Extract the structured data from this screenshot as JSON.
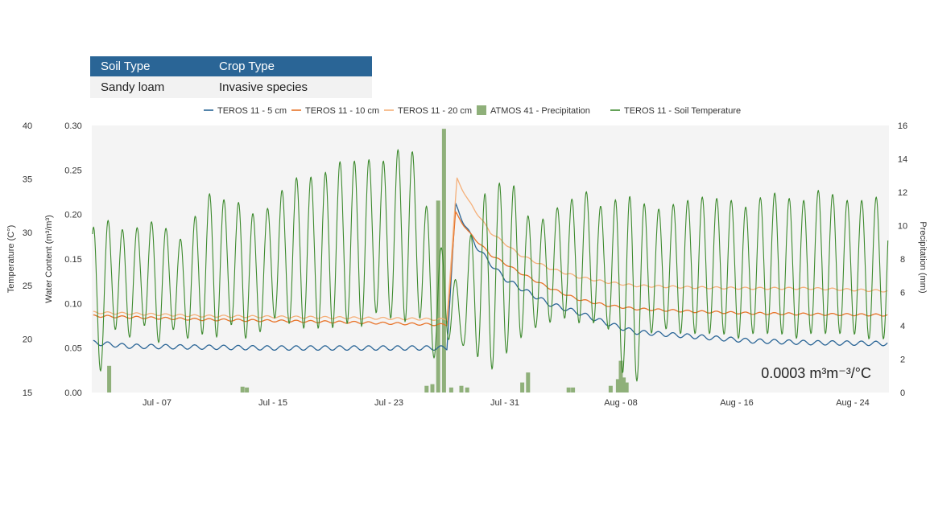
{
  "info_table": {
    "headers": [
      "Soil Type",
      "Crop Type"
    ],
    "values": [
      "Sandy loam",
      "Invasive species"
    ]
  },
  "chart_data": {
    "type": "line",
    "title": "",
    "annotation": "0.0003 m³m⁻³/°C",
    "x_ticks": [
      "Jul - 07",
      "Jul - 15",
      "Jul - 23",
      "Jul - 31",
      "Aug - 08",
      "Aug - 16",
      "Aug - 24"
    ],
    "x_tick_days": [
      7,
      15,
      23,
      31,
      39,
      47,
      55
    ],
    "x_range_days": [
      2.5,
      57.5
    ],
    "axes": {
      "temperature": {
        "label": "Temperature (C°)",
        "range": [
          15,
          40
        ],
        "ticks": [
          "15",
          "20",
          "25",
          "30",
          "35",
          "40"
        ]
      },
      "water_content": {
        "label": "Water Content (m³/m³)",
        "range": [
          0,
          0.3
        ],
        "ticks": [
          "0.00",
          "0.05",
          "0.10",
          "0.15",
          "0.20",
          "0.25",
          "0.30"
        ]
      },
      "precipitation": {
        "label": "Precipitation (mm)",
        "range": [
          0,
          16
        ],
        "ticks": [
          "0",
          "2",
          "4",
          "6",
          "8",
          "10",
          "12",
          "14",
          "16"
        ]
      }
    },
    "legend": [
      {
        "name": "TEROS 11 - 5 cm",
        "color": "#2a6596",
        "kind": "line"
      },
      {
        "name": "TEROS 11 - 10 cm",
        "color": "#e8742a",
        "kind": "line"
      },
      {
        "name": "TEROS 11 - 20 cm",
        "color": "#f5b07a",
        "kind": "line"
      },
      {
        "name": "ATMOS 41 - Precipitation",
        "color": "#8fb07a",
        "kind": "bar"
      },
      {
        "name": "TEROS 11 - Soil Temperature",
        "color": "#3d8a2e",
        "kind": "line"
      }
    ],
    "series": [
      {
        "name": "TEROS 11 - 5 cm",
        "axis": "water_content",
        "color": "#2a6596",
        "x": [
          2.6,
          5,
          10,
          15,
          20,
          24,
          27.0,
          27.6,
          28.2,
          29,
          30,
          31,
          32,
          34,
          36,
          38,
          40,
          44,
          48,
          52,
          57.4
        ],
        "y": [
          0.056,
          0.052,
          0.051,
          0.05,
          0.05,
          0.05,
          0.05,
          0.21,
          0.19,
          0.165,
          0.145,
          0.128,
          0.118,
          0.1,
          0.09,
          0.078,
          0.068,
          0.063,
          0.058,
          0.056,
          0.055
        ]
      },
      {
        "name": "TEROS 11 - 10 cm",
        "axis": "water_content",
        "color": "#e8742a",
        "x": [
          2.6,
          10,
          20,
          27.0,
          27.6,
          28.5,
          30,
          32,
          34,
          36,
          38,
          40,
          44,
          48,
          52,
          57.4
        ],
        "y": [
          0.086,
          0.082,
          0.079,
          0.076,
          0.202,
          0.18,
          0.155,
          0.135,
          0.118,
          0.105,
          0.098,
          0.094,
          0.091,
          0.089,
          0.088,
          0.087
        ]
      },
      {
        "name": "TEROS 11 - 20 cm",
        "axis": "water_content",
        "color": "#f5b07a",
        "x": [
          2.6,
          10,
          20,
          27.0,
          27.7,
          28.5,
          30,
          32,
          34,
          36,
          38,
          40,
          44,
          48,
          52,
          57.4
        ],
        "y": [
          0.09,
          0.086,
          0.084,
          0.082,
          0.24,
          0.215,
          0.18,
          0.155,
          0.14,
          0.13,
          0.124,
          0.12,
          0.118,
          0.117,
          0.117,
          0.114
        ]
      },
      {
        "name": "TEROS 11 - Soil Temperature",
        "axis": "temperature",
        "color": "#3d8a2e",
        "days": [
          3,
          4,
          5,
          6,
          7,
          8,
          9,
          10,
          11,
          12,
          13,
          14,
          15,
          16,
          17,
          18,
          19,
          20,
          21,
          22,
          23,
          24,
          25,
          26,
          27,
          28,
          29,
          30,
          31,
          32,
          33,
          34,
          35,
          36,
          37,
          38,
          39,
          40,
          41,
          42,
          43,
          44,
          45,
          46,
          47,
          48,
          49,
          50,
          51,
          52,
          53,
          54,
          55,
          56,
          57
        ],
        "max": [
          30.5,
          31.5,
          29.5,
          31.0,
          31.0,
          30.0,
          29.0,
          33.0,
          34.0,
          32.5,
          33.0,
          31.0,
          33.0,
          34.5,
          35.5,
          35.0,
          36.0,
          37.0,
          36.5,
          37.0,
          36.5,
          38.5,
          37.0,
          29.5,
          28.0,
          24.0,
          33.0,
          34.0,
          35.0,
          34.0,
          30.0,
          32.0,
          32.5,
          33.5,
          34.0,
          31.5,
          34.0,
          33.0,
          32.5,
          32.0,
          33.0,
          33.0,
          33.5,
          33.0,
          33.0,
          32.0,
          34.0,
          33.5,
          33.0,
          33.0,
          34.5,
          33.0,
          33.0,
          33.0,
          33.5
        ],
        "min": [
          16.5,
          21.0,
          20.0,
          21.5,
          19.5,
          21.0,
          20.0,
          20.5,
          20.0,
          21.5,
          20.0,
          20.5,
          22.0,
          21.5,
          21.0,
          21.0,
          21.0,
          21.5,
          21.0,
          22.5,
          22.0,
          21.5,
          22.5,
          18.0,
          20.0,
          19.5,
          18.5,
          17.0,
          18.5,
          20.0,
          21.0,
          21.5,
          22.0,
          21.5,
          21.5,
          21.5,
          17.0,
          15.5,
          20.5,
          21.0,
          20.5,
          20.5,
          20.5,
          20.5,
          20.0,
          20.5,
          20.5,
          20.5,
          20.0,
          20.5,
          20.5,
          20.5,
          20.5,
          20.0,
          20.0
        ]
      }
    ],
    "precipitation_bars": {
      "axis": "precipitation",
      "color": "#8fb07a",
      "days": [
        3.7,
        12.9,
        13.2,
        25.6,
        26.0,
        26.4,
        26.8,
        27.3,
        28.0,
        28.4,
        32.2,
        32.6,
        35.4,
        35.7,
        38.3,
        38.8,
        39.0,
        39.2,
        39.4
      ],
      "mm": [
        1.6,
        0.35,
        0.3,
        0.4,
        0.5,
        11.5,
        15.8,
        0.3,
        0.4,
        0.3,
        0.6,
        1.2,
        0.3,
        0.3,
        0.4,
        0.8,
        1.9,
        0.9,
        0.6
      ]
    }
  }
}
